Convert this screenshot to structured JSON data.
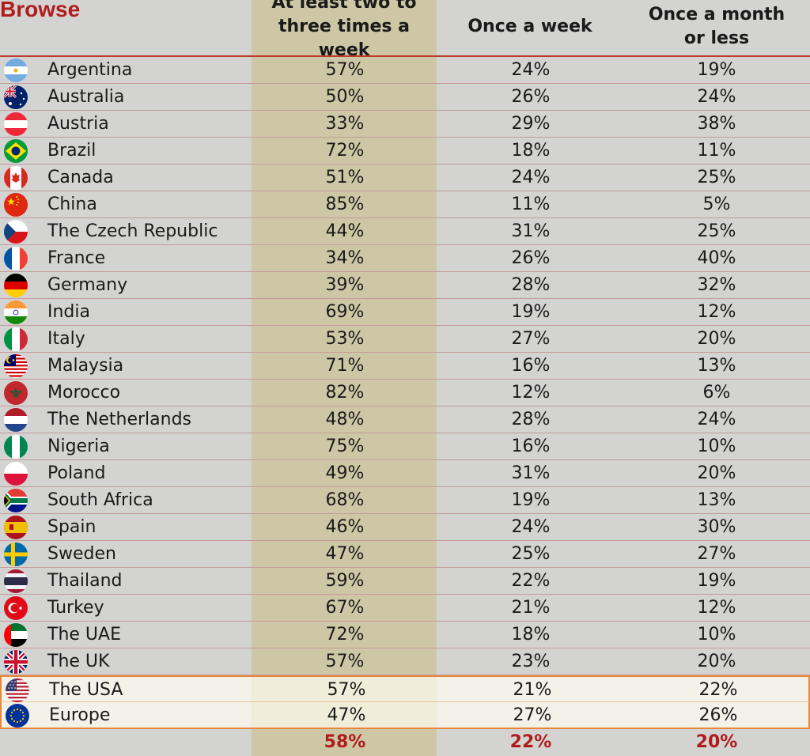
{
  "header": {
    "browse_label": "Browse",
    "columns": [
      "At least two to\nthree times a week",
      "Once a week",
      "Once a month\nor less"
    ]
  },
  "colors": {
    "accent_red": "#b01c1c",
    "highlight_column": "#cdc7a6",
    "highlight_row_border": "#e8873a"
  },
  "rows": [
    {
      "name": "Argentina",
      "icon": "argentina-flag-icon",
      "v": [
        "57%",
        "24%",
        "19%"
      ]
    },
    {
      "name": "Australia",
      "icon": "australia-flag-icon",
      "v": [
        "50%",
        "26%",
        "24%"
      ]
    },
    {
      "name": "Austria",
      "icon": "austria-flag-icon",
      "v": [
        "33%",
        "29%",
        "38%"
      ]
    },
    {
      "name": "Brazil",
      "icon": "brazil-flag-icon",
      "v": [
        "72%",
        "18%",
        "11%"
      ]
    },
    {
      "name": "Canada",
      "icon": "canada-flag-icon",
      "v": [
        "51%",
        "24%",
        "25%"
      ]
    },
    {
      "name": "China",
      "icon": "china-flag-icon",
      "v": [
        "85%",
        "11%",
        "5%"
      ]
    },
    {
      "name": "The Czech Republic",
      "icon": "czech-flag-icon",
      "v": [
        "44%",
        "31%",
        "25%"
      ]
    },
    {
      "name": "France",
      "icon": "france-flag-icon",
      "v": [
        "34%",
        "26%",
        "40%"
      ]
    },
    {
      "name": "Germany",
      "icon": "germany-flag-icon",
      "v": [
        "39%",
        "28%",
        "32%"
      ]
    },
    {
      "name": "India",
      "icon": "india-flag-icon",
      "v": [
        "69%",
        "19%",
        "12%"
      ]
    },
    {
      "name": "Italy",
      "icon": "italy-flag-icon",
      "v": [
        "53%",
        "27%",
        "20%"
      ]
    },
    {
      "name": "Malaysia",
      "icon": "malaysia-flag-icon",
      "v": [
        "71%",
        "16%",
        "13%"
      ]
    },
    {
      "name": "Morocco",
      "icon": "morocco-flag-icon",
      "v": [
        "82%",
        "12%",
        "6%"
      ]
    },
    {
      "name": "The Netherlands",
      "icon": "netherlands-flag-icon",
      "v": [
        "48%",
        "28%",
        "24%"
      ]
    },
    {
      "name": "Nigeria",
      "icon": "nigeria-flag-icon",
      "v": [
        "75%",
        "16%",
        "10%"
      ]
    },
    {
      "name": "Poland",
      "icon": "poland-flag-icon",
      "v": [
        "49%",
        "31%",
        "20%"
      ]
    },
    {
      "name": "South Africa",
      "icon": "south-africa-flag-icon",
      "v": [
        "68%",
        "19%",
        "13%"
      ]
    },
    {
      "name": "Spain",
      "icon": "spain-flag-icon",
      "v": [
        "46%",
        "24%",
        "30%"
      ]
    },
    {
      "name": "Sweden",
      "icon": "sweden-flag-icon",
      "v": [
        "47%",
        "25%",
        "27%"
      ]
    },
    {
      "name": "Thailand",
      "icon": "thailand-flag-icon",
      "v": [
        "59%",
        "22%",
        "19%"
      ]
    },
    {
      "name": "Turkey",
      "icon": "turkey-flag-icon",
      "v": [
        "67%",
        "21%",
        "12%"
      ]
    },
    {
      "name": "The UAE",
      "icon": "uae-flag-icon",
      "v": [
        "72%",
        "18%",
        "10%"
      ]
    },
    {
      "name": "The UK",
      "icon": "uk-flag-icon",
      "v": [
        "57%",
        "23%",
        "20%"
      ]
    },
    {
      "name": "The USA",
      "icon": "usa-flag-icon",
      "v": [
        "57%",
        "21%",
        "22%"
      ],
      "highlight": true
    },
    {
      "name": "Europe",
      "icon": "eu-flag-icon",
      "v": [
        "47%",
        "27%",
        "26%"
      ],
      "highlight": true
    },
    {
      "name": "",
      "icon": "",
      "v": [
        "58%",
        "22%",
        "20%"
      ],
      "total": true
    }
  ],
  "chart_data": {
    "type": "table",
    "columns": [
      "At least two to three times a week",
      "Once a week",
      "Once a month or less"
    ],
    "rows": [
      {
        "label": "Argentina",
        "values": [
          57,
          24,
          19
        ]
      },
      {
        "label": "Australia",
        "values": [
          50,
          26,
          24
        ]
      },
      {
        "label": "Austria",
        "values": [
          33,
          29,
          38
        ]
      },
      {
        "label": "Brazil",
        "values": [
          72,
          18,
          11
        ]
      },
      {
        "label": "Canada",
        "values": [
          51,
          24,
          25
        ]
      },
      {
        "label": "China",
        "values": [
          85,
          11,
          5
        ]
      },
      {
        "label": "The Czech Republic",
        "values": [
          44,
          31,
          25
        ]
      },
      {
        "label": "France",
        "values": [
          34,
          26,
          40
        ]
      },
      {
        "label": "Germany",
        "values": [
          39,
          28,
          32
        ]
      },
      {
        "label": "India",
        "values": [
          69,
          19,
          12
        ]
      },
      {
        "label": "Italy",
        "values": [
          53,
          27,
          20
        ]
      },
      {
        "label": "Malaysia",
        "values": [
          71,
          16,
          13
        ]
      },
      {
        "label": "Morocco",
        "values": [
          82,
          12,
          6
        ]
      },
      {
        "label": "The Netherlands",
        "values": [
          48,
          28,
          24
        ]
      },
      {
        "label": "Nigeria",
        "values": [
          75,
          16,
          10
        ]
      },
      {
        "label": "Poland",
        "values": [
          49,
          31,
          20
        ]
      },
      {
        "label": "South Africa",
        "values": [
          68,
          19,
          13
        ]
      },
      {
        "label": "Spain",
        "values": [
          46,
          24,
          30
        ]
      },
      {
        "label": "Sweden",
        "values": [
          47,
          25,
          27
        ]
      },
      {
        "label": "Thailand",
        "values": [
          59,
          22,
          19
        ]
      },
      {
        "label": "Turkey",
        "values": [
          67,
          21,
          12
        ]
      },
      {
        "label": "The UAE",
        "values": [
          72,
          18,
          10
        ]
      },
      {
        "label": "The UK",
        "values": [
          57,
          23,
          20
        ]
      },
      {
        "label": "The USA",
        "values": [
          57,
          21,
          22
        ]
      },
      {
        "label": "Europe",
        "values": [
          47,
          27,
          26
        ]
      },
      {
        "label": "",
        "values": [
          58,
          22,
          20
        ]
      }
    ]
  }
}
